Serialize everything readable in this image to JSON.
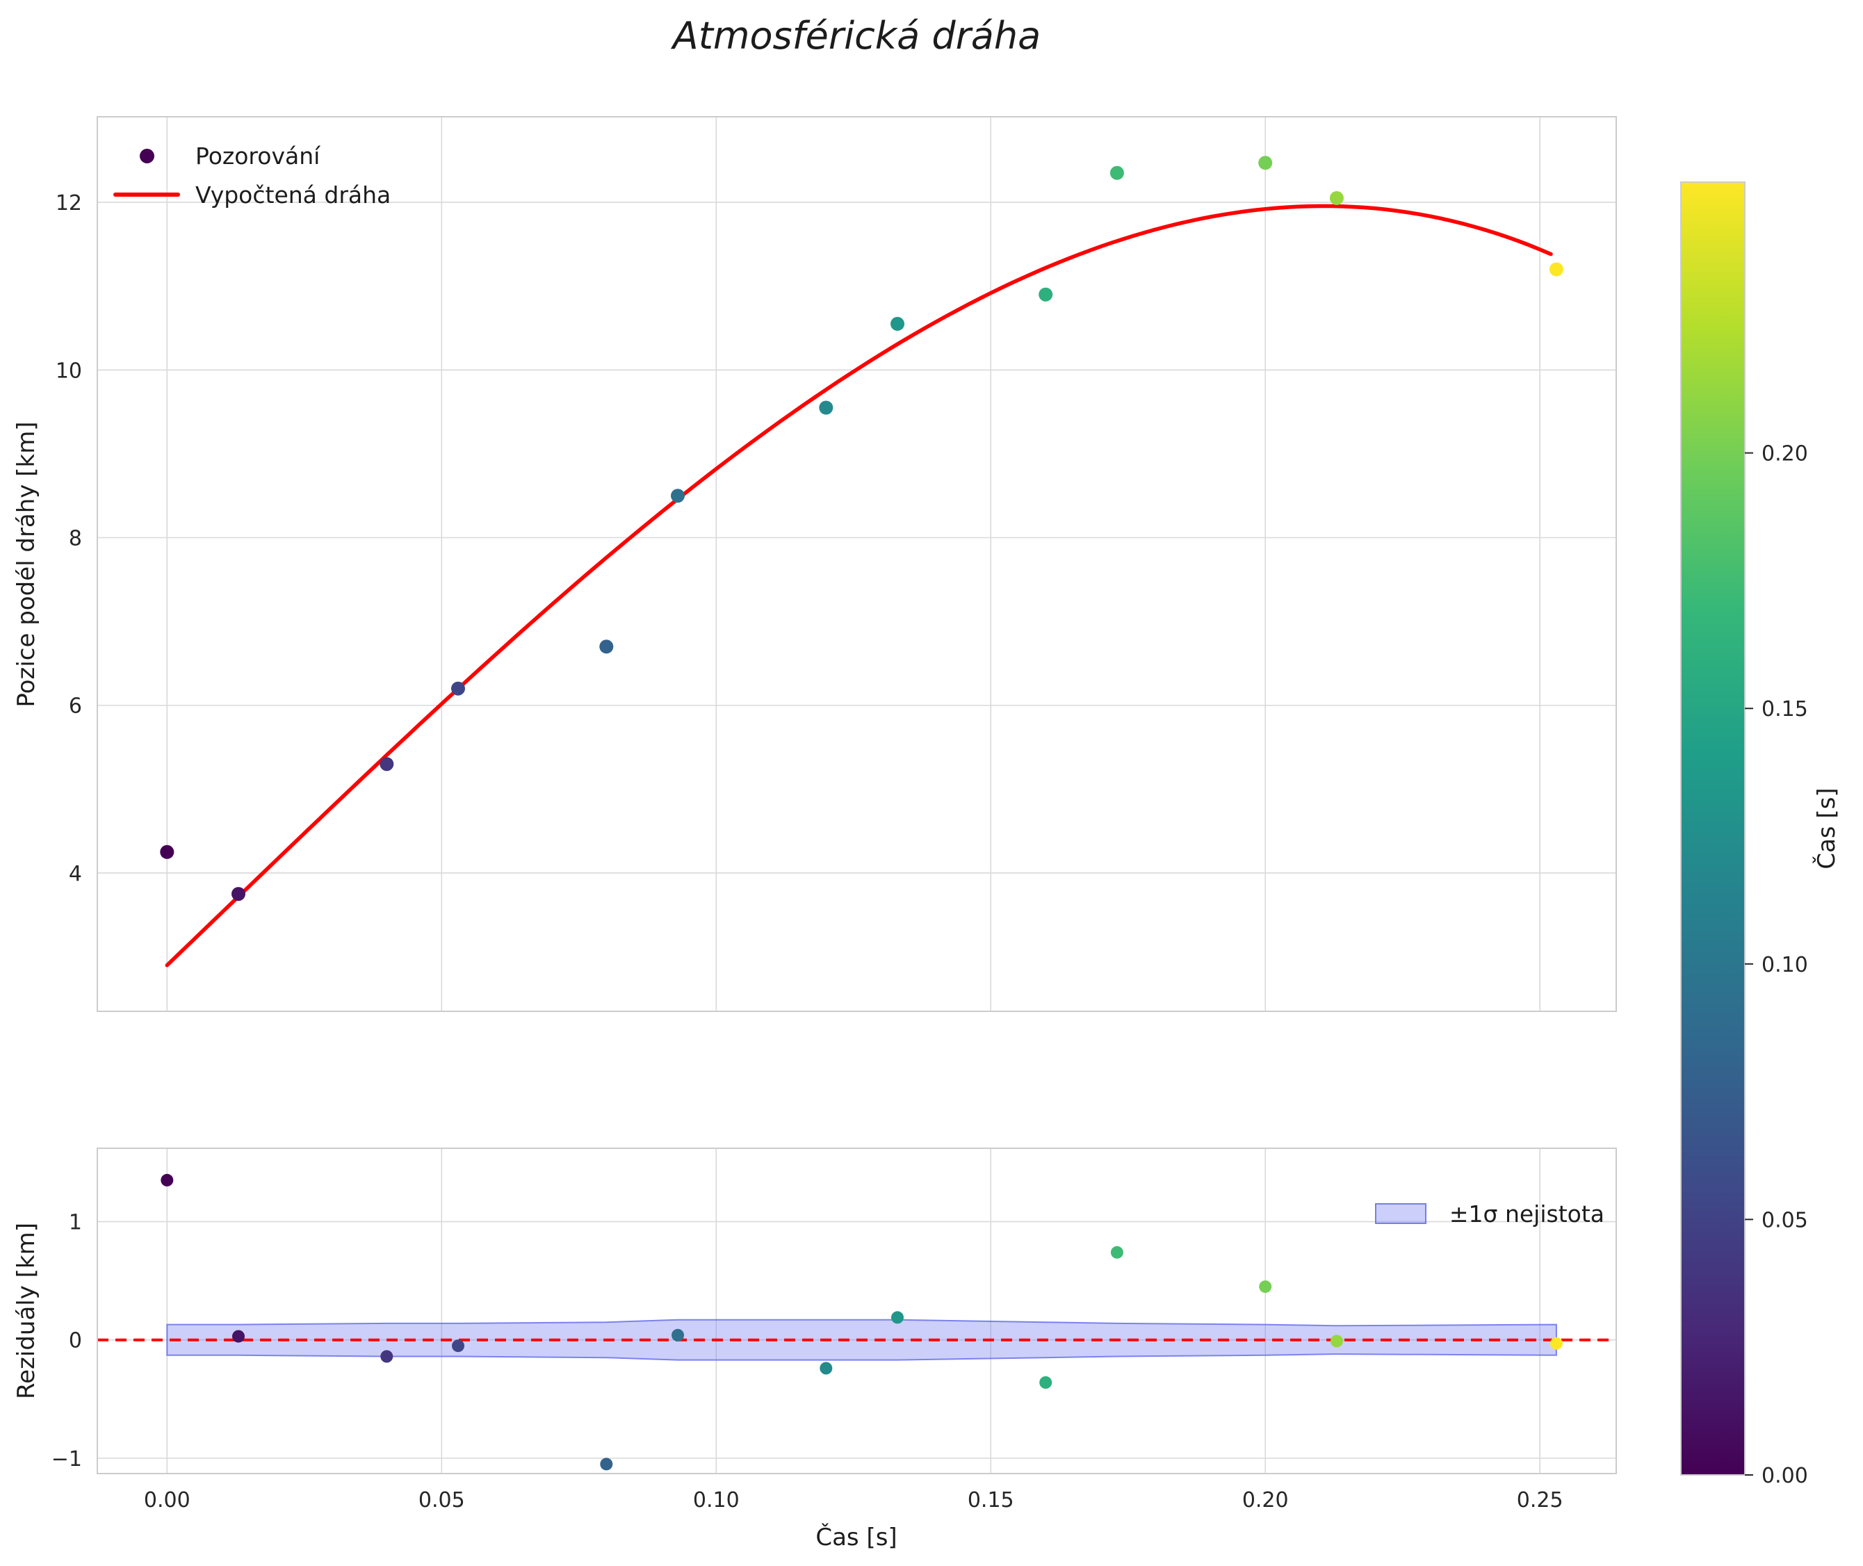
{
  "title": "Atmosférická dráha",
  "colors": {
    "curve": "#ff0000",
    "zero_line": "#ff0000",
    "band_fill": "rgba(108,118,242,0.35)",
    "band_edge": "rgba(88,98,232,0.75)",
    "grid": "#d9d9d9",
    "axes_edge": "#cccccc",
    "tick_text": "#262626",
    "legend_marker": "#440154",
    "viridis": [
      "#440154",
      "#482878",
      "#3e4a89",
      "#31688e",
      "#26828e",
      "#1f9e89",
      "#35b779",
      "#6dcd59",
      "#b4de2c",
      "#fde725"
    ]
  },
  "chart_data": [
    {
      "type": "scatter",
      "title": "Atmosférická dráha",
      "ylabel": "Pozice podél dráhy [km]",
      "legend": [
        {
          "label": "Pozorování",
          "handle": "marker"
        },
        {
          "label": "Vypočtená dráha",
          "handle": "line"
        }
      ],
      "x": [
        0.0,
        0.013,
        0.04,
        0.053,
        0.08,
        0.093,
        0.12,
        0.133,
        0.16,
        0.173,
        0.2,
        0.213,
        0.253
      ],
      "y": [
        4.25,
        3.75,
        5.3,
        6.2,
        6.7,
        8.5,
        9.55,
        10.55,
        10.9,
        12.35,
        12.47,
        12.05,
        11.2
      ],
      "color_by": "x",
      "fit_curve": {
        "type": "cubic-poly",
        "coeffs": [
          2.9,
          62.9,
          15.0,
          -520.0
        ],
        "x_range": [
          0.0,
          0.2535
        ]
      },
      "xlim": [
        -0.0127,
        0.2639
      ],
      "ylim": [
        2.35,
        13.02
      ],
      "yticks": {
        "values": [
          4,
          6,
          8,
          10,
          12
        ],
        "labels": [
          "4",
          "6",
          "8",
          "10",
          "12"
        ]
      },
      "xticks": {
        "values": [
          0.0,
          0.05,
          0.1,
          0.15,
          0.2,
          0.25
        ],
        "labels": [
          "",
          "",
          "",
          "",
          "",
          ""
        ]
      },
      "grid": true
    },
    {
      "type": "scatter",
      "ylabel": "Reziduály [km]",
      "xlabel": "Čas [s]",
      "x": [
        0.0,
        0.013,
        0.04,
        0.053,
        0.08,
        0.093,
        0.12,
        0.133,
        0.16,
        0.173,
        0.2,
        0.213,
        0.253
      ],
      "y": [
        1.35,
        0.03,
        -0.14,
        -0.05,
        -1.05,
        0.04,
        -0.24,
        0.19,
        -0.36,
        0.74,
        0.45,
        -0.01,
        -0.03
      ],
      "band": {
        "label": "±1σ nejistota",
        "x": [
          0.0,
          0.013,
          0.04,
          0.053,
          0.08,
          0.093,
          0.12,
          0.133,
          0.16,
          0.173,
          0.2,
          0.213,
          0.253
        ],
        "sigma": [
          0.13,
          0.13,
          0.14,
          0.14,
          0.15,
          0.17,
          0.17,
          0.17,
          0.15,
          0.14,
          0.13,
          0.12,
          0.13
        ]
      },
      "zero_line": 0,
      "xlim": [
        -0.0127,
        0.2639
      ],
      "ylim": [
        -1.13,
        1.62
      ],
      "yticks": {
        "values": [
          -1,
          0,
          1
        ],
        "labels": [
          "−1",
          "0",
          "1"
        ]
      },
      "xticks": {
        "values": [
          0.0,
          0.05,
          0.1,
          0.15,
          0.2,
          0.25
        ],
        "labels": [
          "0.00",
          "0.05",
          "0.10",
          "0.15",
          "0.20",
          "0.25"
        ]
      },
      "grid": true
    }
  ],
  "colorbar": {
    "label": "Čas [s]",
    "colormap": "viridis",
    "vmin": 0.0,
    "vmax": 0.253,
    "ticks": {
      "values": [
        0.0,
        0.05,
        0.1,
        0.15,
        0.2
      ],
      "labels": [
        "0.00",
        "0.05",
        "0.10",
        "0.15",
        "0.20"
      ]
    }
  }
}
